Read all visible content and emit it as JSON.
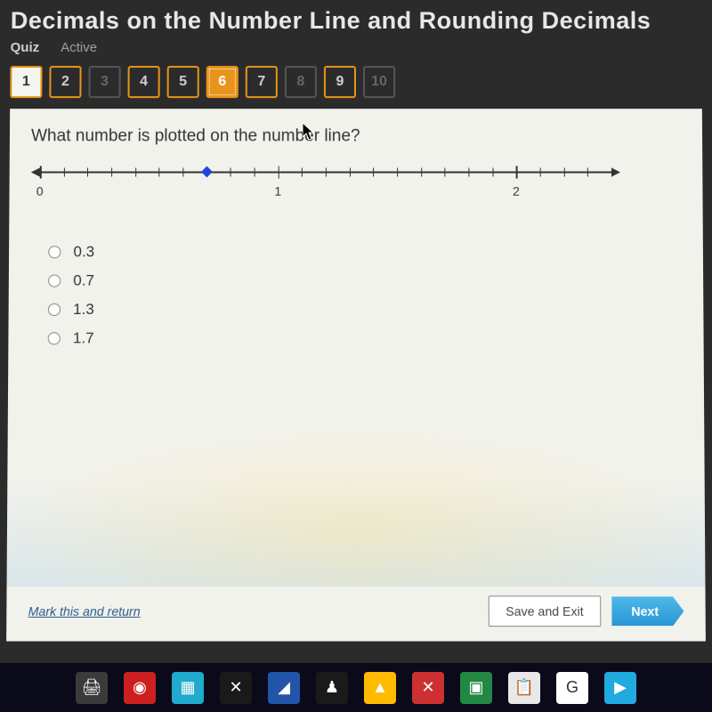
{
  "header": {
    "title": "Decimals on the Number Line and Rounding Decimals",
    "tab_quiz": "Quiz",
    "tab_active": "Active"
  },
  "nav": {
    "items": [
      {
        "num": "1",
        "state": "answered"
      },
      {
        "num": "2",
        "state": "visited"
      },
      {
        "num": "3",
        "state": "locked"
      },
      {
        "num": "4",
        "state": "visited"
      },
      {
        "num": "5",
        "state": "visited"
      },
      {
        "num": "6",
        "state": "current"
      },
      {
        "num": "7",
        "state": "visited"
      },
      {
        "num": "8",
        "state": "locked"
      },
      {
        "num": "9",
        "state": "visited"
      },
      {
        "num": "10",
        "state": "locked"
      }
    ]
  },
  "question": {
    "text": "What number is plotted on the number line?",
    "number_line": {
      "min": 0,
      "max": 2.4,
      "major_ticks": [
        0,
        1,
        2
      ],
      "minor_step": 0.1,
      "plotted_value": 0.7,
      "line_color": "#333333",
      "point_color": "#2244dd"
    },
    "options": [
      {
        "label": "0.3"
      },
      {
        "label": "0.7"
      },
      {
        "label": "1.3"
      },
      {
        "label": "1.7"
      }
    ]
  },
  "footer": {
    "mark_return": "Mark this and return",
    "save_exit": "Save and Exit",
    "next": "Next"
  },
  "colors": {
    "accent": "#e8941a",
    "header_bg": "#2b2b2b",
    "content_bg": "#f2f2ed",
    "next_btn": "#2896d4"
  },
  "taskbar_icons": [
    {
      "bg": "#3a3a3a",
      "glyph": "🖨"
    },
    {
      "bg": "#cc2020",
      "glyph": "◉"
    },
    {
      "bg": "#20aacc",
      "glyph": "▦"
    },
    {
      "bg": "#1a1a1a",
      "glyph": "✕"
    },
    {
      "bg": "#2255aa",
      "glyph": "◢"
    },
    {
      "bg": "#1a1a1a",
      "glyph": "♟"
    },
    {
      "bg": "#ffbb00",
      "glyph": "▲"
    },
    {
      "bg": "#cc3030",
      "glyph": "✕"
    },
    {
      "bg": "#228844",
      "glyph": "▣"
    },
    {
      "bg": "#e8e8e8",
      "glyph": "📋"
    },
    {
      "bg": "#ffffff",
      "glyph": "G"
    },
    {
      "bg": "#20aae0",
      "glyph": "▶"
    }
  ]
}
